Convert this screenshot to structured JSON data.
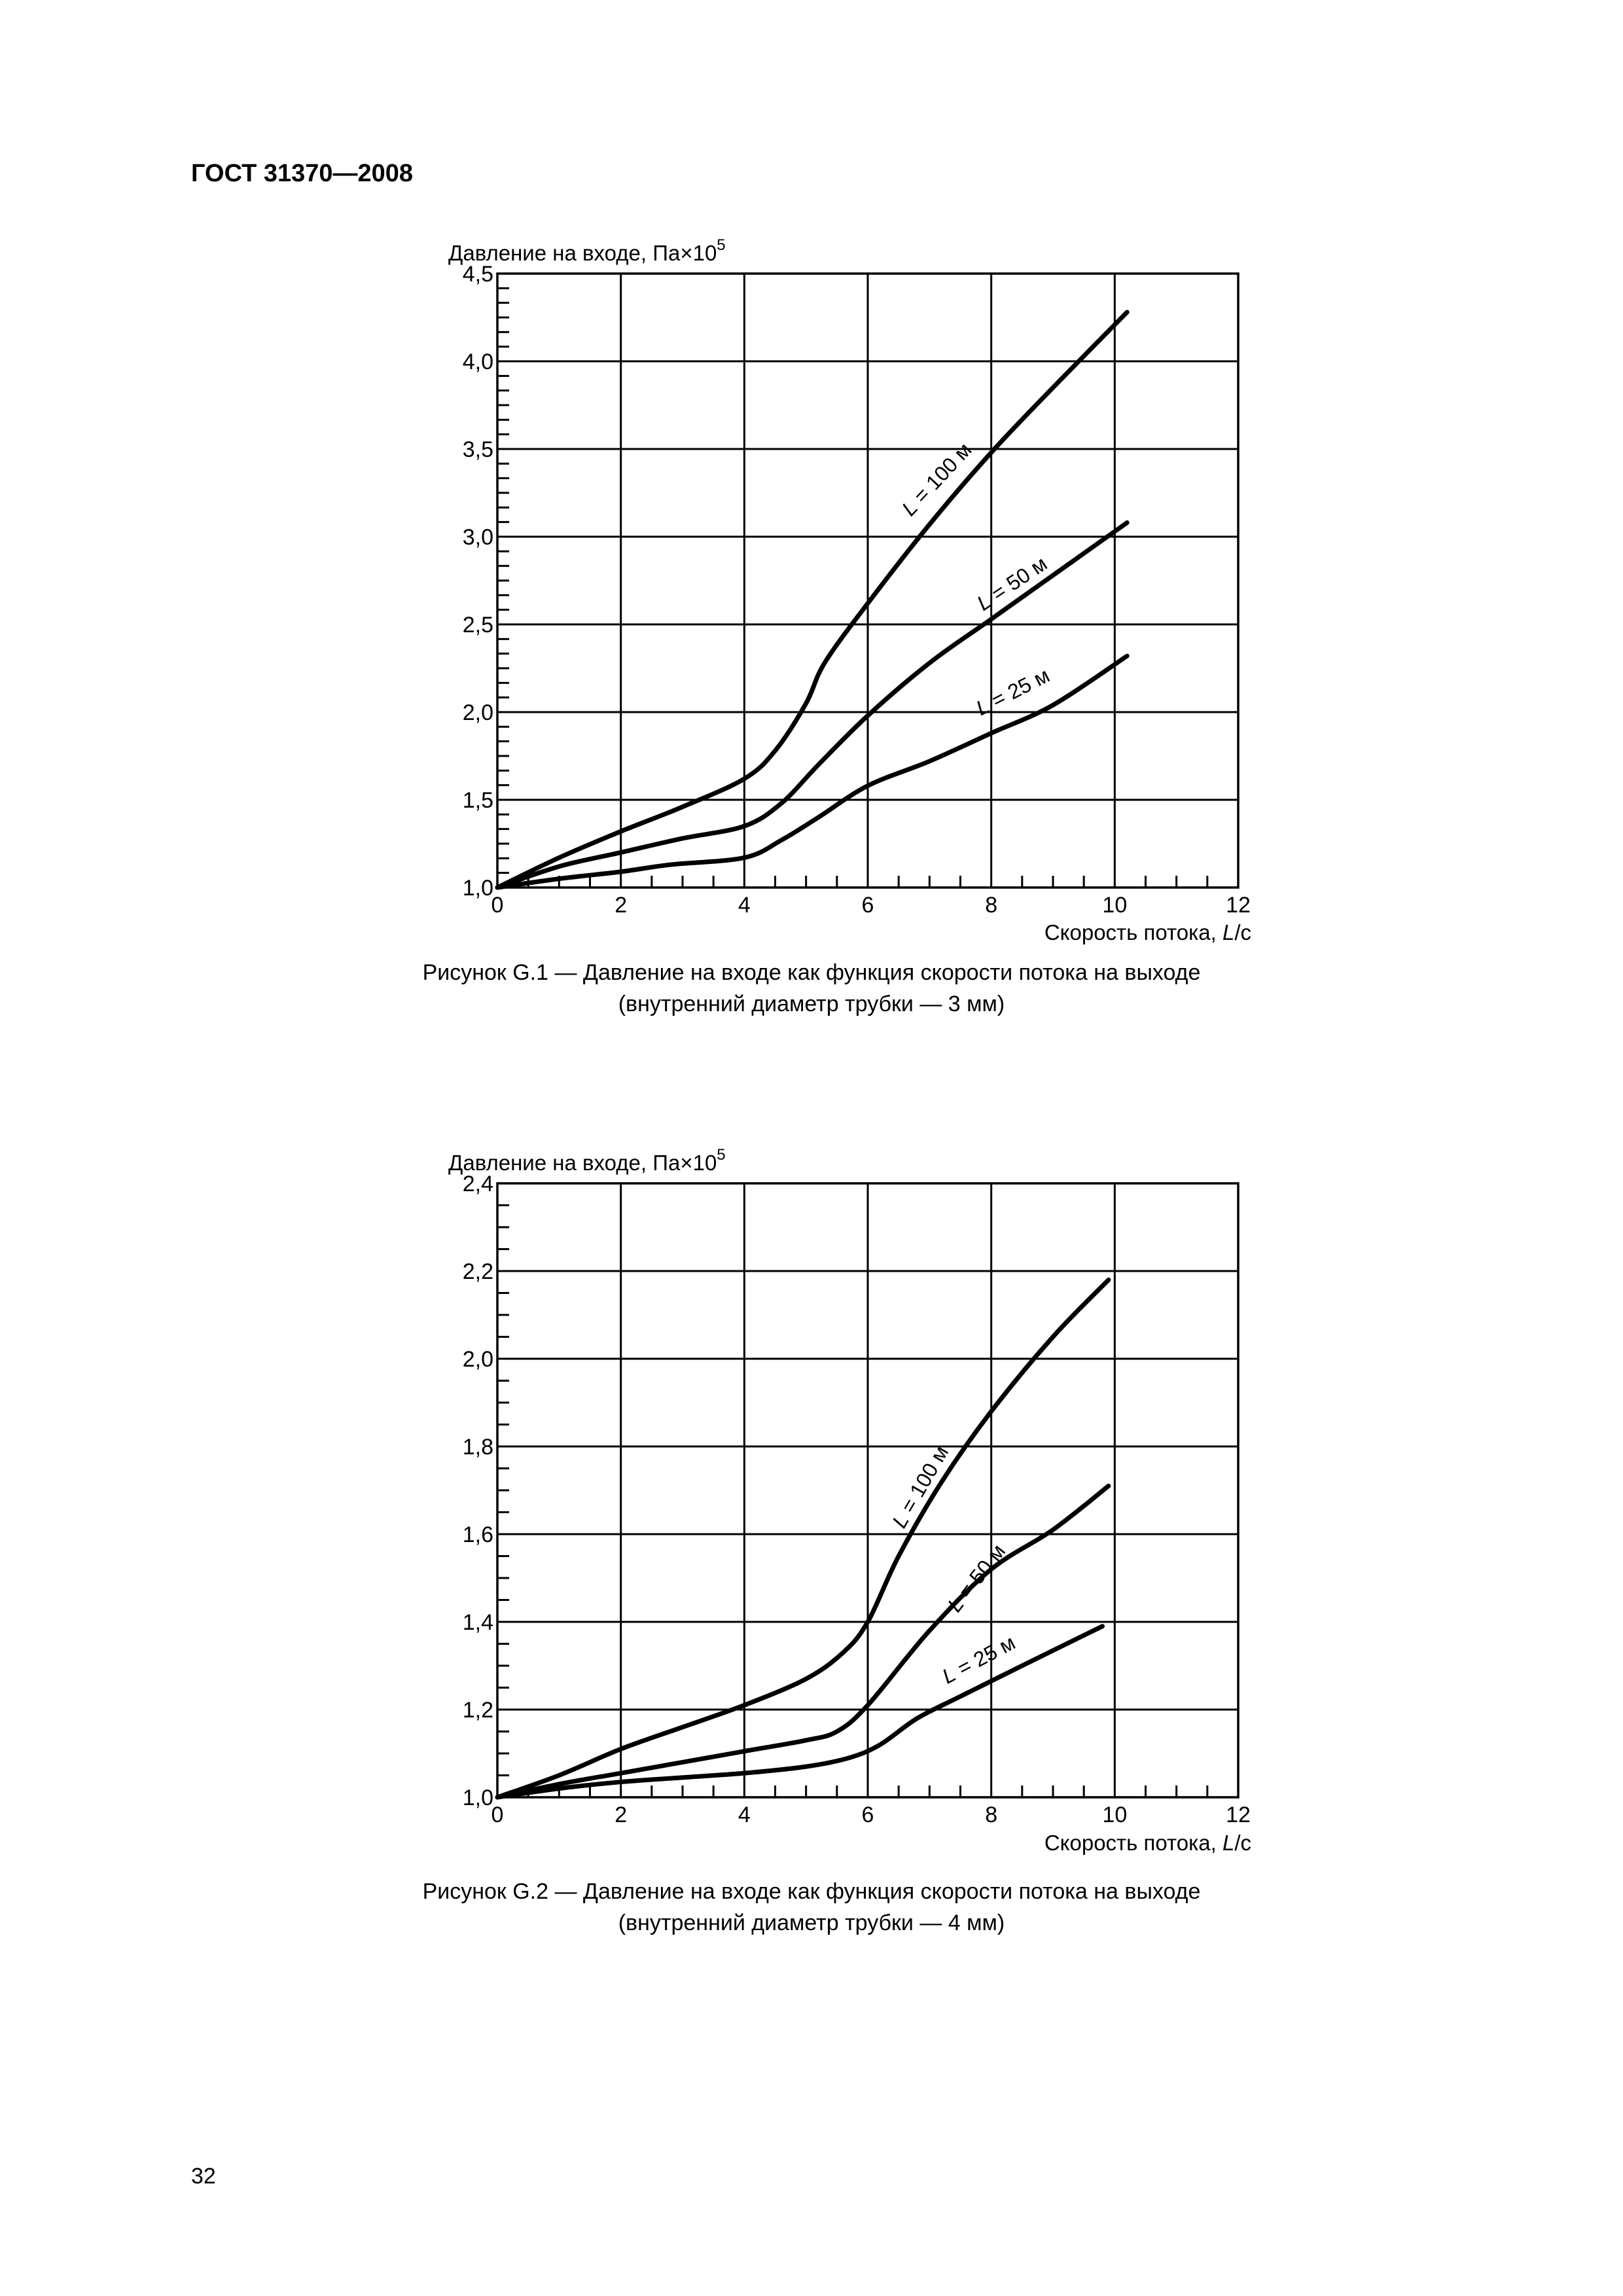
{
  "header": {
    "title": "ГОСТ 31370—2008"
  },
  "page": {
    "number": "32"
  },
  "figures": [
    {
      "caption_line1": "Рисунок G.1 — Давление на входе как функция скорости потока на выходе",
      "caption_line2": "(внутренний диаметр трубки — 3 мм)"
    },
    {
      "caption_line1": "Рисунок G.2 — Давление на входе как функция скорости потока на выходе",
      "caption_line2": "(внутренний диаметр трубки — 4 мм)"
    }
  ],
  "chart_data": [
    {
      "type": "line",
      "ylabel": "Давление на входе, Па×10",
      "ylabel_exponent": "5",
      "xlabel": "Скорость потока, ",
      "xlabel_italic": "L",
      "xlabel_suffix": "/c",
      "xlim": [
        0,
        12
      ],
      "ylim": [
        1.0,
        4.5
      ],
      "xticks": [
        "0",
        "2",
        "4",
        "6",
        "8",
        "10",
        "12"
      ],
      "yticks": [
        "1,0",
        "1,5",
        "2,0",
        "2,5",
        "3,0",
        "3,5",
        "4,0",
        "4,5"
      ],
      "grid": true,
      "series": [
        {
          "name": "L = 100 м",
          "name_italic": "L",
          "name_rest": " = 100 м",
          "points": [
            [
              0,
              1.0
            ],
            [
              1,
              1.17
            ],
            [
              2,
              1.32
            ],
            [
              3,
              1.46
            ],
            [
              4,
              1.62
            ],
            [
              4.5,
              1.78
            ],
            [
              5,
              2.05
            ],
            [
              5.3,
              2.28
            ],
            [
              6,
              2.62
            ],
            [
              7,
              3.07
            ],
            [
              8,
              3.48
            ],
            [
              9,
              3.85
            ],
            [
              10.2,
              4.28
            ]
          ]
        },
        {
          "name": "L = 50 м",
          "name_italic": "L",
          "name_rest": " = 50 м",
          "points": [
            [
              0,
              1.0
            ],
            [
              1,
              1.12
            ],
            [
              2,
              1.2
            ],
            [
              3,
              1.28
            ],
            [
              4,
              1.35
            ],
            [
              4.6,
              1.48
            ],
            [
              5.2,
              1.7
            ],
            [
              6,
              1.98
            ],
            [
              7,
              2.28
            ],
            [
              8,
              2.53
            ],
            [
              9,
              2.78
            ],
            [
              10.2,
              3.08
            ]
          ]
        },
        {
          "name": "L = 25 м",
          "name_italic": "L",
          "name_rest": " = 25 м",
          "points": [
            [
              0,
              1.0
            ],
            [
              1,
              1.05
            ],
            [
              2,
              1.09
            ],
            [
              2.8,
              1.13
            ],
            [
              4,
              1.17
            ],
            [
              4.6,
              1.27
            ],
            [
              5.2,
              1.4
            ],
            [
              6,
              1.58
            ],
            [
              7,
              1.72
            ],
            [
              8,
              1.88
            ],
            [
              9,
              2.04
            ],
            [
              10.2,
              2.32
            ]
          ]
        }
      ]
    },
    {
      "type": "line",
      "ylabel": "Давление на входе, Па×10",
      "ylabel_exponent": "5",
      "xlabel": "Скорость потока, ",
      "xlabel_italic": "L",
      "xlabel_suffix": "/c",
      "xlim": [
        0,
        12
      ],
      "ylim": [
        1.0,
        2.4
      ],
      "xticks": [
        "0",
        "2",
        "4",
        "6",
        "8",
        "10",
        "12"
      ],
      "yticks": [
        "1,0",
        "1,2",
        "1,4",
        "1,6",
        "1,8",
        "2,0",
        "2,2",
        "2,4"
      ],
      "grid": true,
      "series": [
        {
          "name": "L = 100 м",
          "name_italic": "L",
          "name_rest": " = 100 м",
          "points": [
            [
              0,
              1.0
            ],
            [
              1,
              1.05
            ],
            [
              2,
              1.11
            ],
            [
              3,
              1.16
            ],
            [
              4,
              1.21
            ],
            [
              5,
              1.27
            ],
            [
              5.6,
              1.33
            ],
            [
              6,
              1.4
            ],
            [
              6.5,
              1.55
            ],
            [
              7.2,
              1.72
            ],
            [
              8,
              1.88
            ],
            [
              9,
              2.05
            ],
            [
              9.9,
              2.18
            ]
          ]
        },
        {
          "name": "L = 50 м",
          "name_italic": "L",
          "name_rest": " = 50 м",
          "points": [
            [
              0,
              1.0
            ],
            [
              1,
              1.03
            ],
            [
              2,
              1.055
            ],
            [
              3,
              1.08
            ],
            [
              4,
              1.105
            ],
            [
              5,
              1.13
            ],
            [
              5.5,
              1.15
            ],
            [
              6,
              1.21
            ],
            [
              7,
              1.38
            ],
            [
              8,
              1.52
            ],
            [
              9,
              1.61
            ],
            [
              9.9,
              1.71
            ]
          ]
        },
        {
          "name": "L = 25 м",
          "name_italic": "L",
          "name_rest": " = 25 м",
          "points": [
            [
              0,
              1.0
            ],
            [
              1,
              1.02
            ],
            [
              2,
              1.035
            ],
            [
              3,
              1.045
            ],
            [
              4,
              1.055
            ],
            [
              5,
              1.07
            ],
            [
              5.7,
              1.09
            ],
            [
              6.2,
              1.12
            ],
            [
              6.8,
              1.18
            ],
            [
              7.5,
              1.23
            ],
            [
              8.5,
              1.3
            ],
            [
              9.8,
              1.39
            ]
          ]
        }
      ]
    }
  ]
}
